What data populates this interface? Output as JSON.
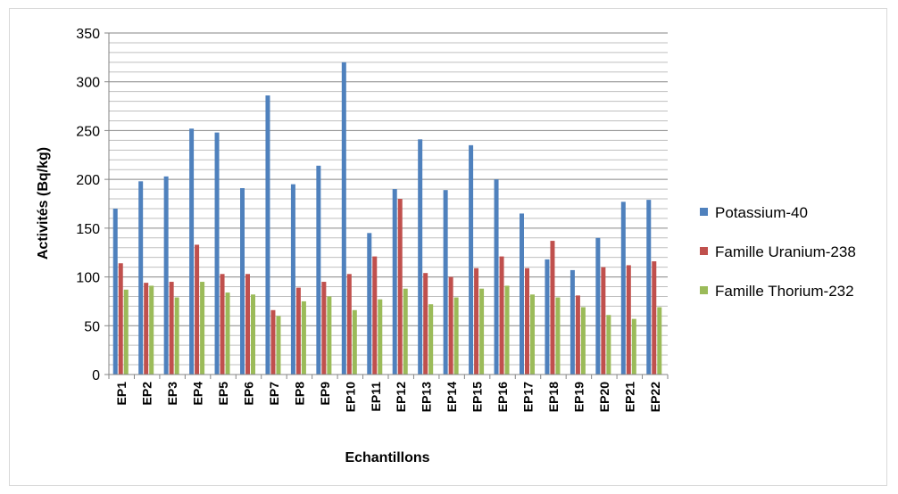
{
  "chart_data": {
    "type": "bar",
    "title": "",
    "xlabel": "Echantillons",
    "ylabel": "Activités (Bq/kg)",
    "ylim": [
      0,
      350
    ],
    "yticks": [
      0,
      50,
      100,
      150,
      200,
      250,
      300,
      350
    ],
    "grid": "on",
    "minor_grid": "on",
    "legend_position": "right",
    "categories": [
      "EP1",
      "EP2",
      "EP3",
      "EP4",
      "EP5",
      "EP6",
      "EP7",
      "EP8",
      "EP9",
      "EP10",
      "EP11",
      "EP12",
      "EP13",
      "EP14",
      "EP15",
      "EP16",
      "EP17",
      "EP18",
      "EP19",
      "EP20",
      "EP21",
      "EP22"
    ],
    "series": [
      {
        "name": "Potassium-40",
        "color": "#4f81bd",
        "values": [
          170,
          198,
          203,
          252,
          248,
          191,
          286,
          195,
          214,
          320,
          145,
          190,
          241,
          189,
          235,
          200,
          165,
          118,
          107,
          140,
          177,
          179
        ]
      },
      {
        "name": "Famille Uranium-238",
        "color": "#c0504d",
        "values": [
          114,
          94,
          95,
          133,
          103,
          103,
          66,
          89,
          95,
          103,
          121,
          180,
          104,
          100,
          109,
          121,
          109,
          137,
          81,
          110,
          112,
          116
        ]
      },
      {
        "name": "Famille Thorium-232",
        "color": "#9bbb59",
        "values": [
          87,
          91,
          79,
          95,
          84,
          82,
          60,
          75,
          80,
          66,
          77,
          88,
          72,
          79,
          88,
          91,
          82,
          79,
          69,
          61,
          57,
          69
        ]
      }
    ]
  }
}
